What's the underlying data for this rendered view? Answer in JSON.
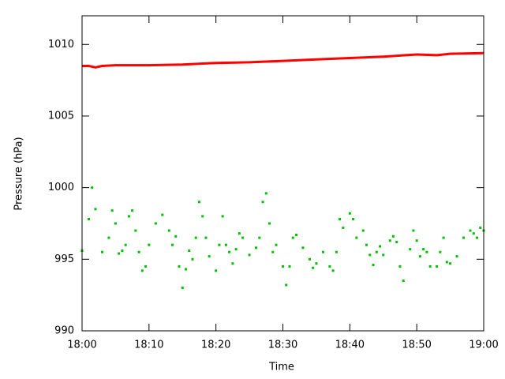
{
  "chart_data": {
    "type": "scatter",
    "xlabel": "Time",
    "ylabel": "Pressure (hPa)",
    "xlim": [
      0,
      60
    ],
    "xticks": [
      {
        "value": 0,
        "label": "18:00"
      },
      {
        "value": 10,
        "label": "18:10"
      },
      {
        "value": 20,
        "label": "18:20"
      },
      {
        "value": 30,
        "label": "18:30"
      },
      {
        "value": 40,
        "label": "18:40"
      },
      {
        "value": 50,
        "label": "18:50"
      },
      {
        "value": 60,
        "label": "19:00"
      }
    ],
    "ylim": [
      990,
      1012
    ],
    "yticks": [
      990,
      995,
      1000,
      1005,
      1010
    ],
    "series": [
      {
        "color": "#ff0000",
        "style": "line",
        "x": [
          0,
          1,
          2,
          3,
          5,
          10,
          15,
          20,
          25,
          30,
          35,
          40,
          45,
          50,
          53,
          55,
          60
        ],
        "values": [
          1008.5,
          1008.5,
          1008.4,
          1008.5,
          1008.55,
          1008.55,
          1008.6,
          1008.7,
          1008.75,
          1008.85,
          1008.95,
          1009.05,
          1009.15,
          1009.3,
          1009.25,
          1009.35,
          1009.4
        ]
      },
      {
        "color": "#00c000",
        "style": "points",
        "x": [
          0,
          1,
          1.5,
          2,
          3,
          4,
          4.5,
          5,
          5.5,
          6,
          6.5,
          7,
          7.5,
          8,
          8.5,
          9,
          9.5,
          10,
          11,
          12,
          13,
          13.5,
          14,
          14.5,
          15,
          15.5,
          16,
          16.5,
          17,
          17.5,
          18,
          18.5,
          19,
          20,
          20.5,
          21,
          21.5,
          22,
          22.5,
          23,
          23.5,
          24,
          25,
          26,
          26.5,
          27,
          27.5,
          28,
          28.5,
          29,
          30,
          30.5,
          31,
          31.5,
          32,
          33,
          34,
          34.5,
          35,
          36,
          37,
          37.5,
          38,
          38.5,
          39,
          40,
          40.5,
          41,
          42,
          42.5,
          43,
          43.5,
          44,
          44.5,
          45,
          46,
          46.5,
          47,
          47.5,
          48,
          49,
          49.5,
          50,
          50.5,
          51,
          51.5,
          52,
          53,
          53.5,
          54,
          54.5,
          55,
          56,
          57,
          58,
          58.5,
          59,
          59.5,
          60
        ],
        "values": [
          995.6,
          997.8,
          1000,
          998.5,
          995.5,
          996.5,
          998.4,
          997.5,
          995.4,
          995.6,
          996,
          998,
          998.4,
          997,
          995.5,
          994.2,
          994.5,
          996,
          997.5,
          998.1,
          997,
          996,
          996.6,
          994.5,
          993,
          994.3,
          995.6,
          995,
          996.5,
          999,
          998,
          996.5,
          995.2,
          994.2,
          996,
          998,
          996,
          995.5,
          994.7,
          995.7,
          996.8,
          996.5,
          995.3,
          995.8,
          996.5,
          999,
          999.6,
          997.5,
          995.5,
          996,
          994.5,
          993.2,
          994.5,
          996.5,
          996.7,
          995.8,
          995,
          994.4,
          994.7,
          995.5,
          994.5,
          994.2,
          995.5,
          997.8,
          997.2,
          998.2,
          997.8,
          996.5,
          997,
          996,
          995.3,
          994.6,
          995.5,
          995.9,
          995.3,
          996.3,
          996.6,
          996.2,
          994.5,
          993.5,
          995.7,
          997,
          996.3,
          995.2,
          995.7,
          995.5,
          994.5,
          994.5,
          995.5,
          996.5,
          994.8,
          994.7,
          995.2,
          996.5,
          997,
          996.8,
          996.5,
          997.2,
          997
        ]
      }
    ]
  }
}
